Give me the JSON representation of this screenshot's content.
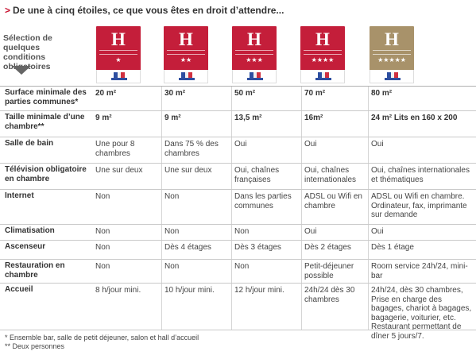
{
  "header": {
    "arrow": ">",
    "title": "De une à cinq étoiles, ce que vous êtes en droit d’attendre..."
  },
  "column_header": "Sélection de quelques conditions obligatoires",
  "logos": [
    {
      "letter": "H",
      "stars": "★",
      "color": "#c41e3a"
    },
    {
      "letter": "H",
      "stars": "★★",
      "color": "#c41e3a"
    },
    {
      "letter": "H",
      "stars": "★★★",
      "color": "#c41e3a"
    },
    {
      "letter": "H",
      "stars": "★★★★",
      "color": "#c41e3a"
    },
    {
      "letter": "H",
      "stars": "★★★★★",
      "color": "#a8926a"
    }
  ],
  "rows": [
    {
      "label": "Surface minimale des parties communes*",
      "bold": true,
      "cells": [
        "20 m²",
        "30 m²",
        "50 m²",
        "70 m²",
        "80 m²"
      ]
    },
    {
      "label": "Taille minimale d’une chambre**",
      "bold": true,
      "cells": [
        "9 m²",
        "9 m²",
        "13,5 m²",
        "16m²",
        "24 m² Lits en 160 x 200"
      ]
    },
    {
      "label": "Salle de bain",
      "bold": false,
      "cells": [
        "Une pour 8 chambres",
        "Dans 75 % des chambres",
        "Oui",
        "Oui",
        "Oui"
      ]
    },
    {
      "label": "Télévision obligatoire en chambre",
      "bold": false,
      "cells": [
        "Une sur deux",
        "Une sur deux",
        "Oui, chaînes françaises",
        "Oui, chaînes internationales",
        "Oui, chaînes internationales et thématiques"
      ]
    },
    {
      "label": "Internet",
      "bold": false,
      "cells": [
        "Non",
        "Non",
        "Dans les parties communes",
        "ADSL ou Wifi en chambre",
        "ADSL ou Wifi en chambre. Ordinateur, fax, imprimante sur demande"
      ]
    },
    {
      "label": "Climatisation",
      "bold": false,
      "cells": [
        "Non",
        "Non",
        "Non",
        "Oui",
        "Oui"
      ]
    },
    {
      "label": "Ascenseur",
      "bold": false,
      "cells": [
        "Non",
        "Dès 4 étages",
        "Dès 3 étages",
        "Dès 2 étages",
        "Dès 1 étage"
      ]
    },
    {
      "label": "Restauration en chambre",
      "bold": false,
      "cells": [
        "Non",
        "Non",
        "Non",
        "Petit-déjeuner possible",
        "Room service 24h/24, mini-bar"
      ]
    },
    {
      "label": "Accueil",
      "bold": false,
      "cells": [
        "8 h/jour mini.",
        "10 h/jour mini.",
        "12 h/jour mini.",
        "24h/24 dès 30 chambres",
        "24h/24, dès 30 chambres, Prise en charge des bagages, chariot à bagages, bagagerie, voiturier, etc. Restaurant permettant de dîner 5 jours/7."
      ]
    }
  ],
  "notes": [
    "* Ensemble bar, salle de petit déjeuner, salon et hall d’accueil",
    "** Deux personnes"
  ]
}
